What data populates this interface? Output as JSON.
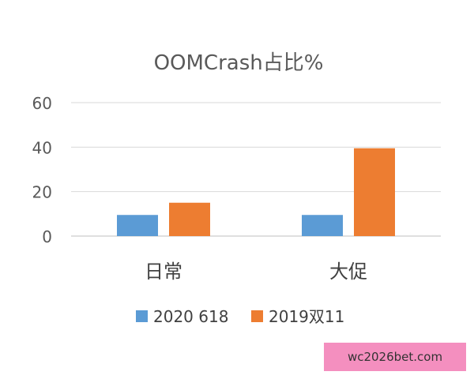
{
  "chart_data": {
    "type": "bar",
    "title": "OOMCrash占比%",
    "categories": [
      "日常",
      "大促"
    ],
    "series": [
      {
        "name": "2020 618",
        "values": [
          9.5,
          9.5
        ],
        "color": "#5b9bd5"
      },
      {
        "name": "2019双11",
        "values": [
          15,
          39.5
        ],
        "color": "#ed7d31"
      }
    ],
    "ylim": [
      0,
      60
    ],
    "yticks": [
      0,
      20,
      40,
      60
    ],
    "grid": true,
    "legend_position": "bottom"
  },
  "watermark": {
    "text": "wc2026bet.com",
    "color": "#f48fbf"
  }
}
